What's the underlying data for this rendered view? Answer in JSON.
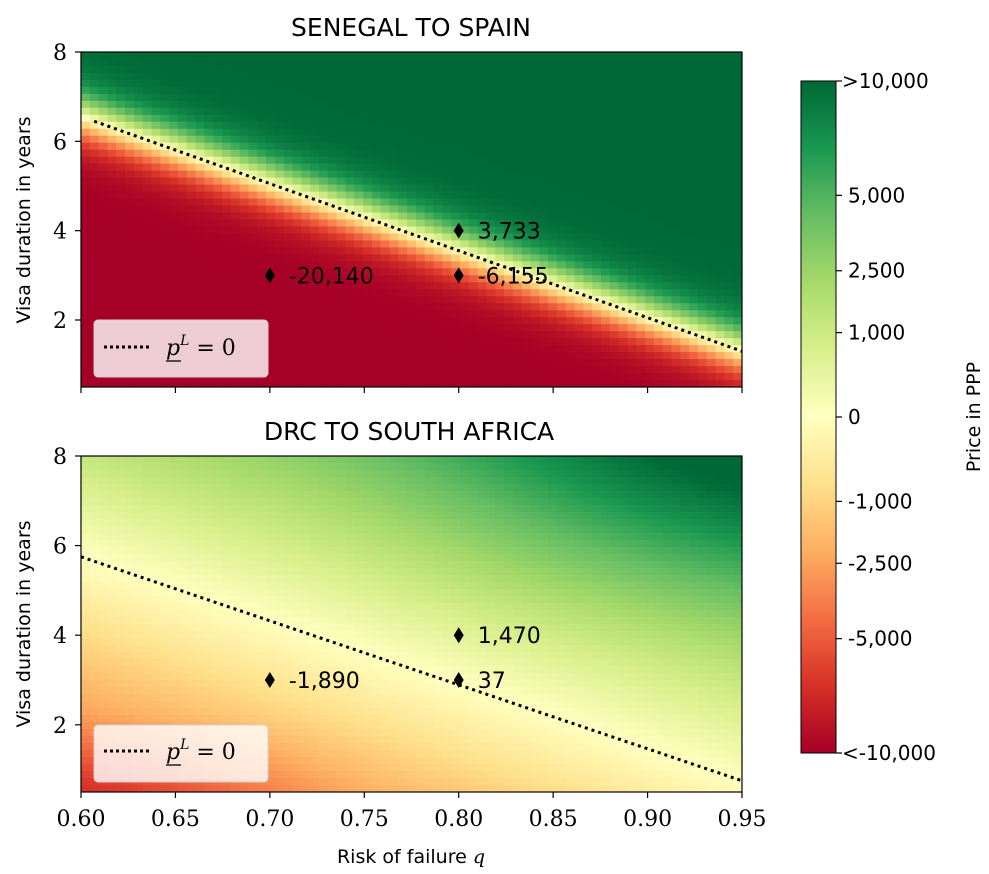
{
  "chart_data": [
    {
      "type": "heatmap",
      "title": "SENEGAL TO SPAIN",
      "xlabel": "",
      "ylabel": "Visa duration in years",
      "xlim": [
        0.6,
        0.95
      ],
      "ylim": [
        0.5,
        8
      ],
      "yticks": [
        {
          "v": 2,
          "label": "2"
        },
        {
          "v": 4,
          "label": "4"
        },
        {
          "v": 6,
          "label": "6"
        },
        {
          "v": 8,
          "label": "8"
        }
      ],
      "zero_line": {
        "style": "dotted",
        "x": [
          0.607,
          0.95
        ],
        "y": [
          6.45,
          1.3
        ]
      },
      "legend": {
        "label": "p^L = 0",
        "label_main": "p",
        "label_sup": "L",
        "label_rest": " = 0",
        "placement": "lower-left"
      },
      "points": [
        {
          "x": 0.8,
          "y": 4,
          "label": "3,733"
        },
        {
          "x": 0.7,
          "y": 3,
          "label": "-20,140"
        },
        {
          "x": 0.8,
          "y": 3,
          "label": "-6,155"
        }
      ]
    },
    {
      "type": "heatmap",
      "title": "DRC TO SOUTH AFRICA",
      "xlabel": "Risk of failure q",
      "xlabel_main": "Risk of failure ",
      "xlabel_var": "q",
      "ylabel": "Visa duration in years",
      "xlim": [
        0.6,
        0.95
      ],
      "ylim": [
        0.5,
        8
      ],
      "xticks": [
        {
          "v": 0.6,
          "label": "0.60"
        },
        {
          "v": 0.65,
          "label": "0.65"
        },
        {
          "v": 0.7,
          "label": "0.70"
        },
        {
          "v": 0.75,
          "label": "0.75"
        },
        {
          "v": 0.8,
          "label": "0.80"
        },
        {
          "v": 0.85,
          "label": "0.85"
        },
        {
          "v": 0.9,
          "label": "0.90"
        },
        {
          "v": 0.95,
          "label": "0.95"
        }
      ],
      "yticks": [
        {
          "v": 2,
          "label": "2"
        },
        {
          "v": 4,
          "label": "4"
        },
        {
          "v": 6,
          "label": "6"
        },
        {
          "v": 8,
          "label": "8"
        }
      ],
      "zero_line": {
        "style": "dotted",
        "x": [
          0.6,
          0.95
        ],
        "y": [
          5.75,
          0.75
        ]
      },
      "legend": {
        "label": "p^L = 0",
        "label_main": "p",
        "label_sup": "L",
        "label_rest": " = 0",
        "placement": "lower-left"
      },
      "points": [
        {
          "x": 0.8,
          "y": 4,
          "label": "1,470"
        },
        {
          "x": 0.7,
          "y": 3,
          "label": "-1,890"
        },
        {
          "x": 0.8,
          "y": 3,
          "label": "37"
        }
      ]
    }
  ],
  "colorbar": {
    "label": "Price in PPP",
    "colormap": "RdYlGn",
    "ticks": [
      {
        "v": 10000,
        "label": ">10,000"
      },
      {
        "v": 5000,
        "label": "5,000"
      },
      {
        "v": 2500,
        "label": "2,500"
      },
      {
        "v": 1000,
        "label": "1,000"
      },
      {
        "v": 0,
        "label": "0"
      },
      {
        "v": -1000,
        "label": "-1,000"
      },
      {
        "v": -2500,
        "label": "-2,500"
      },
      {
        "v": -5000,
        "label": "-5,000"
      },
      {
        "v": -10000,
        "label": "<-10,000"
      }
    ]
  }
}
